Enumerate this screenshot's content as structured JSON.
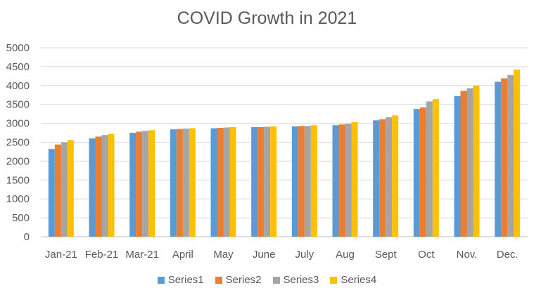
{
  "chart_data": {
    "type": "bar",
    "title": "COVID Growth in 2021",
    "xlabel": "",
    "ylabel": "",
    "ylim": [
      0,
      5000
    ],
    "yticks": [
      "0",
      "500",
      "1000",
      "1500",
      "2000",
      "2500",
      "3000",
      "3500",
      "4000",
      "4500",
      "5000"
    ],
    "grid": true,
    "legend_position": "bottom",
    "categories": [
      "Jan-21",
      "Feb-21",
      "Mar-21",
      "April",
      "May",
      "June",
      "July",
      "Aug",
      "Sept",
      "Oct",
      "Nov.",
      "Dec."
    ],
    "series": [
      {
        "name": "Series1",
        "color": "#5B9BD5",
        "values": [
          2320,
          2600,
          2750,
          2840,
          2870,
          2900,
          2920,
          2950,
          3080,
          3380,
          3720,
          4100
        ]
      },
      {
        "name": "Series2",
        "color": "#ED7D31",
        "values": [
          2440,
          2650,
          2780,
          2850,
          2880,
          2900,
          2930,
          2970,
          3110,
          3420,
          3860,
          4190
        ]
      },
      {
        "name": "Series3",
        "color": "#A5A5A5",
        "values": [
          2500,
          2690,
          2800,
          2860,
          2890,
          2910,
          2930,
          2990,
          3160,
          3580,
          3930,
          4280
        ]
      },
      {
        "name": "Series4",
        "color": "#FFC000",
        "values": [
          2560,
          2720,
          2820,
          2870,
          2900,
          2920,
          2950,
          3030,
          3210,
          3640,
          4000,
          4420
        ]
      }
    ]
  }
}
